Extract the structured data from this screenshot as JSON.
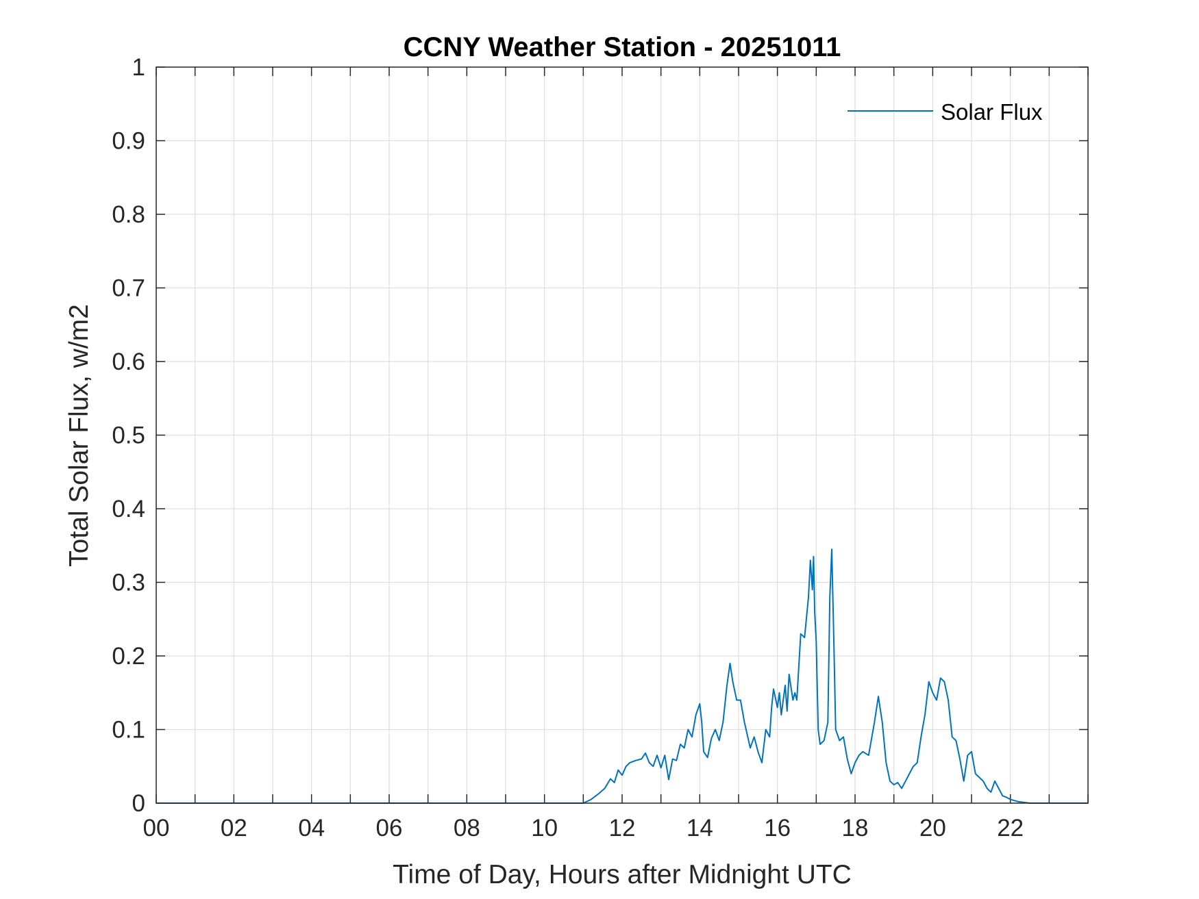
{
  "colors": {
    "series": "#0072BD",
    "grid": "#dfdfdf",
    "axis": "#262626",
    "background": "#ffffff"
  },
  "chart_data": {
    "type": "line",
    "title": "CCNY Weather Station - 20251011",
    "xlabel": "Time of Day, Hours after Midnight UTC",
    "ylabel": "Total Solar Flux, w/m2",
    "xlim": [
      0,
      24
    ],
    "ylim": [
      0,
      1
    ],
    "grid": true,
    "legend_position": "top-right",
    "x_ticks": [
      0,
      2,
      4,
      6,
      8,
      10,
      12,
      14,
      16,
      18,
      20,
      22
    ],
    "x_tick_labels": [
      "00",
      "02",
      "04",
      "06",
      "08",
      "10",
      "12",
      "14",
      "16",
      "18",
      "20",
      "22"
    ],
    "y_ticks": [
      0,
      0.1,
      0.2,
      0.3,
      0.4,
      0.5,
      0.6,
      0.7,
      0.8,
      0.9,
      1
    ],
    "y_tick_labels": [
      "0",
      "0.1",
      "0.2",
      "0.3",
      "0.4",
      "0.5",
      "0.6",
      "0.7",
      "0.8",
      "0.9",
      "1"
    ],
    "series": [
      {
        "name": "Solar Flux",
        "x": [
          0,
          11.0,
          11.2,
          11.4,
          11.55,
          11.7,
          11.8,
          11.9,
          12.0,
          12.1,
          12.2,
          12.35,
          12.5,
          12.6,
          12.7,
          12.8,
          12.9,
          13.0,
          13.1,
          13.2,
          13.3,
          13.4,
          13.5,
          13.6,
          13.7,
          13.8,
          13.9,
          14.0,
          14.05,
          14.1,
          14.2,
          14.3,
          14.4,
          14.5,
          14.6,
          14.7,
          14.78,
          14.85,
          14.95,
          15.05,
          15.15,
          15.3,
          15.4,
          15.5,
          15.6,
          15.7,
          15.8,
          15.85,
          15.9,
          16.0,
          16.05,
          16.1,
          16.2,
          16.25,
          16.3,
          16.4,
          16.45,
          16.5,
          16.6,
          16.7,
          16.8,
          16.85,
          16.9,
          16.93,
          16.96,
          17.0,
          17.05,
          17.1,
          17.2,
          17.3,
          17.35,
          17.4,
          17.45,
          17.5,
          17.6,
          17.7,
          17.8,
          17.9,
          18.0,
          18.1,
          18.2,
          18.35,
          18.5,
          18.6,
          18.7,
          18.8,
          18.9,
          19.0,
          19.1,
          19.2,
          19.3,
          19.4,
          19.5,
          19.6,
          19.7,
          19.8,
          19.9,
          20.0,
          20.1,
          20.2,
          20.3,
          20.4,
          20.5,
          20.6,
          20.7,
          20.8,
          20.9,
          21.0,
          21.1,
          21.2,
          21.3,
          21.4,
          21.5,
          21.6,
          21.7,
          21.8,
          21.9,
          22.0,
          22.2,
          22.5,
          24.0
        ],
        "y": [
          0,
          0,
          0.005,
          0.013,
          0.02,
          0.033,
          0.028,
          0.045,
          0.038,
          0.05,
          0.055,
          0.058,
          0.06,
          0.068,
          0.055,
          0.05,
          0.065,
          0.048,
          0.065,
          0.032,
          0.06,
          0.058,
          0.08,
          0.075,
          0.1,
          0.09,
          0.12,
          0.135,
          0.11,
          0.07,
          0.062,
          0.088,
          0.1,
          0.085,
          0.11,
          0.16,
          0.19,
          0.165,
          0.14,
          0.14,
          0.11,
          0.075,
          0.09,
          0.07,
          0.055,
          0.1,
          0.09,
          0.13,
          0.155,
          0.13,
          0.15,
          0.12,
          0.16,
          0.125,
          0.175,
          0.14,
          0.15,
          0.14,
          0.23,
          0.225,
          0.28,
          0.33,
          0.29,
          0.335,
          0.26,
          0.22,
          0.1,
          0.08,
          0.085,
          0.11,
          0.28,
          0.345,
          0.23,
          0.1,
          0.085,
          0.09,
          0.06,
          0.04,
          0.055,
          0.065,
          0.07,
          0.065,
          0.11,
          0.145,
          0.11,
          0.055,
          0.03,
          0.025,
          0.028,
          0.02,
          0.03,
          0.04,
          0.05,
          0.055,
          0.09,
          0.12,
          0.165,
          0.15,
          0.14,
          0.17,
          0.165,
          0.14,
          0.09,
          0.085,
          0.06,
          0.03,
          0.065,
          0.07,
          0.04,
          0.035,
          0.03,
          0.02,
          0.015,
          0.03,
          0.02,
          0.01,
          0.008,
          0.005,
          0.002,
          0,
          0
        ]
      }
    ]
  }
}
